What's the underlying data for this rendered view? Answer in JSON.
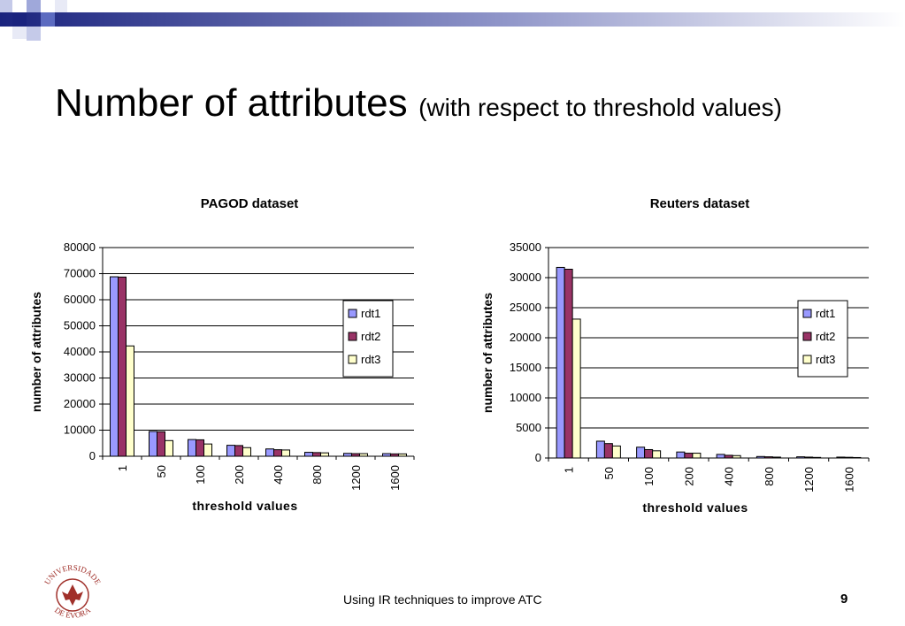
{
  "slide": {
    "title": "Number of attributes",
    "subtitle": "(with respect to threshold values)",
    "footer": "Using IR techniques to improve ATC",
    "page_number": "9",
    "logo_text_top": "UNIVERSIDADE",
    "logo_text_bottom": "DE ÉVORA",
    "colors": {
      "rdt1": "#9999ff",
      "rdt2": "#993366",
      "rdt3": "#ffffcc",
      "logo": "#a0302a"
    }
  },
  "chart_data": [
    {
      "type": "bar",
      "title": "PAGOD dataset",
      "xlabel": "threshold values",
      "ylabel": "number of attributes",
      "categories": [
        "1",
        "50",
        "100",
        "200",
        "400",
        "800",
        "1200",
        "1600"
      ],
      "ylim": [
        0,
        80000
      ],
      "yticks": [
        0,
        10000,
        20000,
        30000,
        40000,
        50000,
        60000,
        70000,
        80000
      ],
      "grid": true,
      "legend": "right",
      "series": [
        {
          "name": "rdt1",
          "values": [
            68800,
            9500,
            6400,
            4200,
            2800,
            1500,
            1100,
            1000
          ]
        },
        {
          "name": "rdt2",
          "values": [
            68700,
            9400,
            6300,
            4100,
            2500,
            1400,
            1000,
            900
          ]
        },
        {
          "name": "rdt3",
          "values": [
            42300,
            6000,
            4700,
            3300,
            2400,
            1300,
            1000,
            900
          ]
        }
      ]
    },
    {
      "type": "bar",
      "title": "Reuters dataset",
      "xlabel": "threshold values",
      "ylabel": "number of attributes",
      "categories": [
        "1",
        "50",
        "100",
        "200",
        "400",
        "800",
        "1200",
        "1600"
      ],
      "ylim": [
        0,
        35000
      ],
      "yticks": [
        0,
        5000,
        10000,
        15000,
        20000,
        25000,
        30000,
        35000
      ],
      "grid": true,
      "legend": "right",
      "series": [
        {
          "name": "rdt1",
          "values": [
            31700,
            2800,
            1800,
            1000,
            600,
            250,
            200,
            150
          ]
        },
        {
          "name": "rdt2",
          "values": [
            31400,
            2400,
            1400,
            800,
            450,
            200,
            150,
            120
          ]
        },
        {
          "name": "rdt3",
          "values": [
            23100,
            2000,
            1200,
            800,
            400,
            150,
            100,
            80
          ]
        }
      ]
    }
  ]
}
